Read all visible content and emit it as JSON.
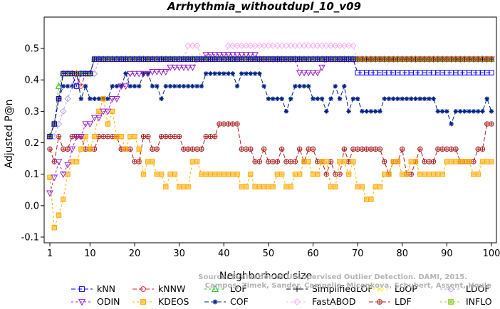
{
  "chart_data": {
    "type": "line",
    "title": "Arrhythmia_withoutdupl_10_v09",
    "xlabel": "Neighborhood size",
    "ylabel": "Adjusted P@n",
    "xlim": [
      1,
      100
    ],
    "ylim": [
      -0.1,
      0.55
    ],
    "x_ticks": [
      "1",
      "10",
      "20",
      "30",
      "40",
      "50",
      "60",
      "70",
      "80",
      "90",
      "100"
    ],
    "y_ticks": [
      "-0.1",
      "0.0",
      "0.1",
      "0.2",
      "0.3",
      "0.4",
      "0.5"
    ],
    "credit": {
      "line1": "Source: Evaluation of Unsupervised Outlier Detection. DAMI, 2015.",
      "line2": "Campos, Zimek, Sander, Campello, Micenkova, Schubert, Assent, Houle"
    },
    "legend_position": "bottom",
    "series": [
      {
        "name": "kNN",
        "color": "#0000ff",
        "marker": "square",
        "dash": "6,3",
        "anchors": [
          [
            1,
            0.22
          ],
          [
            2,
            0.26
          ],
          [
            3,
            0.34
          ],
          [
            4,
            0.42
          ],
          [
            6,
            0.42
          ],
          [
            7,
            0.38
          ],
          [
            8,
            0.42
          ],
          [
            11,
            0.466
          ],
          [
            69,
            0.466
          ],
          [
            70,
            0.423
          ],
          [
            100,
            0.423
          ]
        ]
      },
      {
        "name": "kNNW",
        "color": "#dd2222",
        "marker": "circle",
        "dash": "6,3",
        "anchors": [
          [
            1,
            0.22
          ],
          [
            2,
            0.26
          ],
          [
            3,
            0.34
          ],
          [
            4,
            0.42
          ],
          [
            7,
            0.42
          ],
          [
            8,
            0.38
          ],
          [
            9,
            0.42
          ],
          [
            11,
            0.466
          ],
          [
            100,
            0.466
          ]
        ]
      },
      {
        "name": "LOF",
        "color": "#22bb22",
        "marker": "triangle-up",
        "dash": "3,3",
        "anchors": [
          [
            1,
            0.22
          ],
          [
            2,
            0.26
          ],
          [
            3,
            0.38
          ],
          [
            4,
            0.42
          ],
          [
            11,
            0.466
          ],
          [
            100,
            0.466
          ]
        ]
      },
      {
        "name": "SimplifiedLOF",
        "color": "#000000",
        "marker": "plus",
        "dash": "6,3",
        "anchors": [
          [
            1,
            0.22
          ],
          [
            2,
            0.26
          ],
          [
            3,
            0.34
          ],
          [
            4,
            0.42
          ],
          [
            10,
            0.42
          ],
          [
            11,
            0.466
          ],
          [
            100,
            0.466
          ]
        ]
      },
      {
        "name": "LoOP",
        "color": "#eeee00",
        "marker": "cross",
        "dash": "3,3",
        "anchors": [
          [
            1,
            0.22
          ],
          [
            2,
            0.26
          ],
          [
            3,
            0.34
          ],
          [
            4,
            0.42
          ],
          [
            11,
            0.466
          ],
          [
            100,
            0.466
          ]
        ]
      },
      {
        "name": "LDOF",
        "color": "#b0a0dd",
        "marker": "diamond",
        "dash": "3,3",
        "anchors": [
          [
            1,
            0.22
          ],
          [
            2,
            0.22
          ],
          [
            3,
            0.26
          ],
          [
            4,
            0.3
          ],
          [
            5,
            0.34
          ],
          [
            6,
            0.38
          ],
          [
            8,
            0.42
          ],
          [
            12,
            0.466
          ],
          [
            100,
            0.466
          ]
        ]
      },
      {
        "name": "ODIN",
        "color": "#9922cc",
        "marker": "triangle-down",
        "dash": "3,3",
        "anchors": [
          [
            1,
            0.04
          ],
          [
            2,
            0.09
          ],
          [
            3,
            0.14
          ],
          [
            4,
            0.1
          ],
          [
            5,
            0.13
          ],
          [
            6,
            0.18
          ],
          [
            7,
            0.22
          ],
          [
            9,
            0.26
          ],
          [
            11,
            0.28
          ],
          [
            13,
            0.3
          ],
          [
            15,
            0.34
          ],
          [
            17,
            0.38
          ],
          [
            19,
            0.42
          ],
          [
            24,
            0.426
          ],
          [
            28,
            0.44
          ],
          [
            34,
            0.466
          ],
          [
            36,
            0.48
          ],
          [
            46,
            0.48
          ],
          [
            48,
            0.466
          ],
          [
            56,
            0.466
          ],
          [
            57,
            0.423
          ],
          [
            62,
            0.44
          ],
          [
            63,
            0.466
          ],
          [
            70,
            0.466
          ],
          [
            100,
            0.466
          ]
        ]
      },
      {
        "name": "KDEOS",
        "color": "#ffaa00",
        "marker": "square-fill",
        "dash": "3,3",
        "anchors": [
          [
            1,
            0.09
          ],
          [
            2,
            -0.07
          ],
          [
            3,
            -0.03
          ],
          [
            4,
            0.02
          ],
          [
            5,
            0.1
          ],
          [
            6,
            0.14
          ],
          [
            8,
            0.18
          ],
          [
            9,
            0.22
          ],
          [
            10,
            0.18
          ],
          [
            11,
            0.22
          ],
          [
            12,
            0.3
          ],
          [
            13,
            0.34
          ],
          [
            14,
            0.26
          ],
          [
            15,
            0.3
          ],
          [
            16,
            0.22
          ],
          [
            18,
            0.18
          ],
          [
            19,
            0.22
          ],
          [
            21,
            0.18
          ],
          [
            22,
            0.1
          ],
          [
            23,
            0.14
          ],
          [
            25,
            0.1
          ],
          [
            27,
            0.06
          ],
          [
            28,
            0.1
          ],
          [
            30,
            0.06
          ],
          [
            33,
            0.14
          ],
          [
            35,
            0.1
          ],
          [
            41,
            0.1
          ],
          [
            44,
            0.06
          ],
          [
            46,
            0.1
          ],
          [
            47,
            0.06
          ],
          [
            52,
            0.1
          ],
          [
            54,
            0.06
          ],
          [
            56,
            0.1
          ],
          [
            58,
            0.14
          ],
          [
            60,
            0.1
          ],
          [
            62,
            0.14
          ],
          [
            64,
            0.06
          ],
          [
            66,
            0.14
          ],
          [
            68,
            0.1
          ],
          [
            69,
            0.14
          ],
          [
            70,
            0.06
          ],
          [
            72,
            0.02
          ],
          [
            74,
            0.06
          ],
          [
            76,
            0.1
          ],
          [
            78,
            0.14
          ],
          [
            80,
            0.1
          ],
          [
            82,
            0.14
          ],
          [
            84,
            0.1
          ],
          [
            90,
            0.14
          ],
          [
            92,
            0.14
          ],
          [
            96,
            0.1
          ],
          [
            98,
            0.14
          ],
          [
            100,
            0.14
          ]
        ]
      },
      {
        "name": "COF",
        "color": "#002288",
        "marker": "star",
        "dash": "6,3",
        "anchors": [
          [
            1,
            0.22
          ],
          [
            2,
            0.26
          ],
          [
            3,
            0.34
          ],
          [
            4,
            0.38
          ],
          [
            6,
            0.38
          ],
          [
            7,
            0.42
          ],
          [
            8,
            0.34
          ],
          [
            9,
            0.38
          ],
          [
            10,
            0.34
          ],
          [
            12,
            0.34
          ],
          [
            15,
            0.38
          ],
          [
            17,
            0.38
          ],
          [
            18,
            0.42
          ],
          [
            19,
            0.38
          ],
          [
            21,
            0.38
          ],
          [
            22,
            0.42
          ],
          [
            24,
            0.38
          ],
          [
            26,
            0.34
          ],
          [
            27,
            0.38
          ],
          [
            35,
            0.38
          ],
          [
            36,
            0.42
          ],
          [
            42,
            0.42
          ],
          [
            43,
            0.38
          ],
          [
            44,
            0.42
          ],
          [
            48,
            0.42
          ],
          [
            49,
            0.38
          ],
          [
            50,
            0.34
          ],
          [
            53,
            0.34
          ],
          [
            54,
            0.3
          ],
          [
            55,
            0.34
          ],
          [
            56,
            0.38
          ],
          [
            59,
            0.38
          ],
          [
            60,
            0.34
          ],
          [
            62,
            0.34
          ],
          [
            63,
            0.3
          ],
          [
            64,
            0.34
          ],
          [
            65,
            0.38
          ],
          [
            66,
            0.34
          ],
          [
            67,
            0.38
          ],
          [
            68,
            0.3
          ],
          [
            69,
            0.34
          ],
          [
            70,
            0.34
          ],
          [
            71,
            0.3
          ],
          [
            75,
            0.3
          ],
          [
            76,
            0.34
          ],
          [
            87,
            0.34
          ],
          [
            88,
            0.3
          ],
          [
            90,
            0.3
          ],
          [
            91,
            0.26
          ],
          [
            92,
            0.3
          ],
          [
            98,
            0.3
          ],
          [
            99,
            0.34
          ],
          [
            100,
            0.3
          ]
        ]
      },
      {
        "name": "FastABOD",
        "color": "#ffaaee",
        "marker": "diamond",
        "dash": "3,3",
        "anchors": [
          [
            1,
            0.22
          ],
          [
            2,
            0.26
          ],
          [
            3,
            0.34
          ],
          [
            4,
            0.42
          ],
          [
            11,
            0.466
          ],
          [
            31,
            0.466
          ],
          [
            32,
            0.509
          ],
          [
            34,
            0.509
          ],
          [
            35,
            0.466
          ],
          [
            40,
            0.466
          ],
          [
            41,
            0.509
          ],
          [
            69,
            0.509
          ],
          [
            70,
            0.466
          ],
          [
            100,
            0.466
          ]
        ]
      },
      {
        "name": "LDF",
        "color": "#aa2222",
        "marker": "circle-plus",
        "dash": "6,3",
        "anchors": [
          [
            1,
            0.18
          ],
          [
            2,
            0.14
          ],
          [
            3,
            0.22
          ],
          [
            4,
            0.18
          ],
          [
            6,
            0.22
          ],
          [
            8,
            0.22
          ],
          [
            9,
            0.18
          ],
          [
            12,
            0.22
          ],
          [
            16,
            0.22
          ],
          [
            17,
            0.18
          ],
          [
            19,
            0.18
          ],
          [
            20,
            0.14
          ],
          [
            21,
            0.14
          ],
          [
            22,
            0.22
          ],
          [
            24,
            0.18
          ],
          [
            26,
            0.22
          ],
          [
            30,
            0.22
          ],
          [
            31,
            0.18
          ],
          [
            35,
            0.18
          ],
          [
            36,
            0.22
          ],
          [
            38,
            0.22
          ],
          [
            39,
            0.26
          ],
          [
            43,
            0.26
          ],
          [
            44,
            0.18
          ],
          [
            46,
            0.18
          ],
          [
            47,
            0.14
          ],
          [
            49,
            0.18
          ],
          [
            50,
            0.14
          ],
          [
            52,
            0.14
          ],
          [
            53,
            0.18
          ],
          [
            54,
            0.14
          ],
          [
            57,
            0.18
          ],
          [
            58,
            0.14
          ],
          [
            59,
            0.18
          ],
          [
            61,
            0.14
          ],
          [
            62,
            0.14
          ],
          [
            63,
            0.1
          ],
          [
            64,
            0.14
          ],
          [
            65,
            0.1
          ],
          [
            66,
            0.1
          ],
          [
            67,
            0.18
          ],
          [
            68,
            0.14
          ],
          [
            69,
            0.18
          ],
          [
            75,
            0.18
          ],
          [
            76,
            0.14
          ],
          [
            77,
            0.1
          ],
          [
            78,
            0.14
          ],
          [
            79,
            0.14
          ],
          [
            80,
            0.18
          ],
          [
            81,
            0.1
          ],
          [
            82,
            0.1
          ],
          [
            83,
            0.14
          ],
          [
            84,
            0.18
          ],
          [
            85,
            0.14
          ],
          [
            87,
            0.14
          ],
          [
            88,
            0.18
          ],
          [
            92,
            0.18
          ],
          [
            93,
            0.14
          ],
          [
            96,
            0.14
          ],
          [
            97,
            0.18
          ],
          [
            98,
            0.18
          ],
          [
            99,
            0.26
          ],
          [
            100,
            0.26
          ]
        ]
      },
      {
        "name": "INFLO",
        "color": "#99cc33",
        "marker": "sun",
        "dash": "3,3",
        "anchors": [
          [
            1,
            0.22
          ],
          [
            2,
            0.26
          ],
          [
            3,
            0.34
          ],
          [
            4,
            0.42
          ],
          [
            11,
            0.466
          ],
          [
            100,
            0.466
          ]
        ]
      }
    ]
  }
}
